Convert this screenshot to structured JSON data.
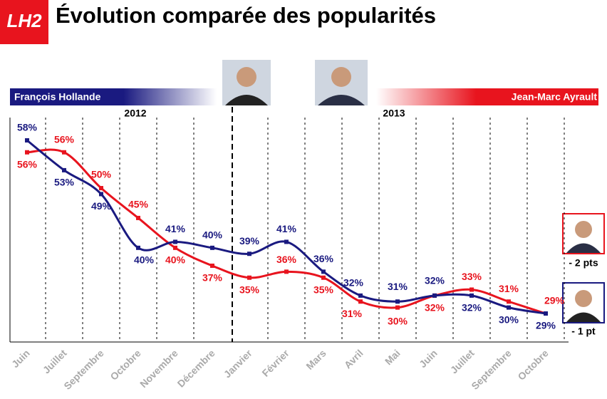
{
  "logo": "LH2",
  "chart_data": {
    "type": "line",
    "title": "Évolution comparée des popularités",
    "periods": [
      "2012",
      "2013"
    ],
    "categories": [
      "Juin",
      "Juillet",
      "Septembre",
      "Octobre",
      "Novembre",
      "Décembre",
      "Janvier",
      "Février",
      "Mars",
      "Avril",
      "Mai",
      "Juin",
      "Juillet",
      "Septembre",
      "Octobre"
    ],
    "series": [
      {
        "name": "François Hollande",
        "color": "#1a1a80",
        "values": [
          58,
          53,
          49,
          40,
          41,
          40,
          39,
          41,
          36,
          32,
          31,
          32,
          32,
          30,
          29
        ],
        "value_labels": [
          "58%",
          "53%",
          "49%",
          "40%",
          "41%",
          "40%",
          "39%",
          "41%",
          "36%",
          "32%",
          "31%",
          "32%",
          "32%",
          "30%",
          "29%"
        ],
        "change": "- 1 pt"
      },
      {
        "name": "Jean-Marc Ayrault",
        "color": "#e8141e",
        "values": [
          56,
          56,
          50,
          45,
          40,
          37,
          35,
          36,
          35,
          31,
          30,
          32,
          33,
          31,
          29
        ],
        "value_labels": [
          "56%",
          "56%",
          "50%",
          "45%",
          "40%",
          "37%",
          "35%",
          "36%",
          "35%",
          "31%",
          "30%",
          "32%",
          "33%",
          "31%",
          "29%"
        ],
        "change": "- 2 pts"
      }
    ]
  }
}
